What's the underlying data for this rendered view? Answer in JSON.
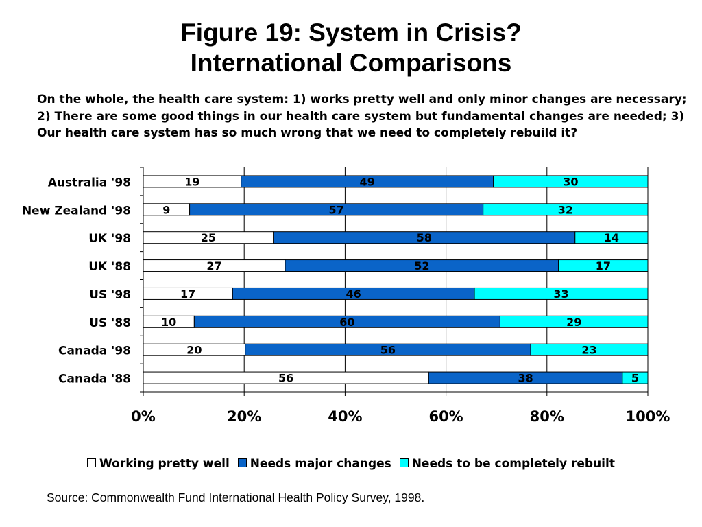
{
  "title_line1": "Figure 19: System in Crisis?",
  "title_line2": "International Comparisons",
  "question": "On the whole, the health care system: 1) works pretty well and only minor changes are necessary; 2) There are some good things in our health care system but fundamental changes are needed; 3) Our health care system has so much wrong that we need to completely rebuild it?",
  "source": "Source: Commonwealth Fund International Health Policy Survey, 1998.",
  "chart_data": {
    "type": "bar",
    "orientation": "horizontal",
    "stacked": "percent",
    "categories": [
      "Australia '98",
      "New Zealand '98",
      "UK '98",
      "UK '88",
      "US '98",
      "US '88",
      "Canada '98",
      "Canada '88"
    ],
    "series": [
      {
        "name": "Working pretty well",
        "color": "#ffffff",
        "values": [
          19,
          9,
          25,
          27,
          17,
          10,
          20,
          56
        ]
      },
      {
        "name": "Needs major changes",
        "color": "#0a64c8",
        "values": [
          49,
          57,
          58,
          52,
          46,
          60,
          56,
          38
        ]
      },
      {
        "name": "Needs to be completely rebuilt",
        "color": "#00ffff",
        "values": [
          30,
          32,
          14,
          17,
          33,
          29,
          23,
          5
        ]
      }
    ],
    "x_ticks": [
      "0%",
      "20%",
      "40%",
      "60%",
      "80%",
      "100%"
    ],
    "xlim": [
      0,
      100
    ],
    "legend_position": "bottom",
    "grid": "vertical"
  }
}
